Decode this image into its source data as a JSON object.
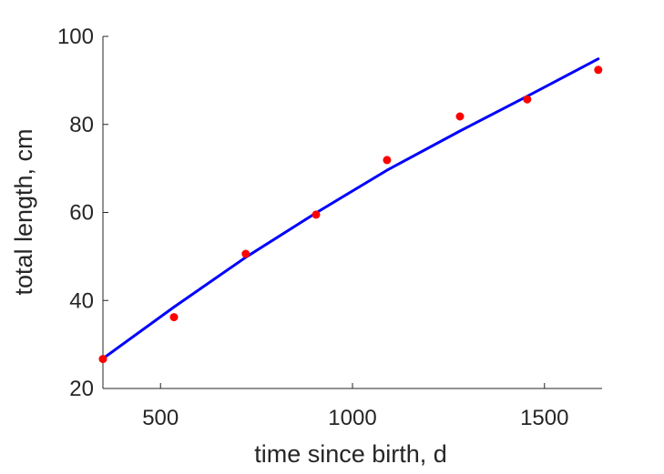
{
  "chart_data": {
    "type": "scatter",
    "title": "",
    "xlabel": "time since birth, d",
    "ylabel": "total length, cm",
    "xlim": [
      350,
      1650
    ],
    "ylim": [
      20,
      100
    ],
    "xticks": [
      500,
      1000,
      1500
    ],
    "yticks": [
      20,
      40,
      60,
      80,
      100
    ],
    "grid": false,
    "legend": "none",
    "series": [
      {
        "kind": "points",
        "color": "#ff0000",
        "x": [
          350,
          535,
          722,
          905,
          1090,
          1280,
          1455,
          1640
        ],
        "y": [
          26.7,
          36.2,
          50.6,
          59.5,
          71.9,
          81.8,
          85.7,
          92.4
        ]
      },
      {
        "kind": "fitted-curve",
        "color": "#0000ff",
        "x": [
          350,
          535,
          722,
          905,
          1090,
          1280,
          1455,
          1640
        ],
        "y": [
          26.8,
          38.5,
          49.8,
          59.9,
          69.6,
          78.5,
          86.4,
          94.9
        ]
      }
    ]
  }
}
